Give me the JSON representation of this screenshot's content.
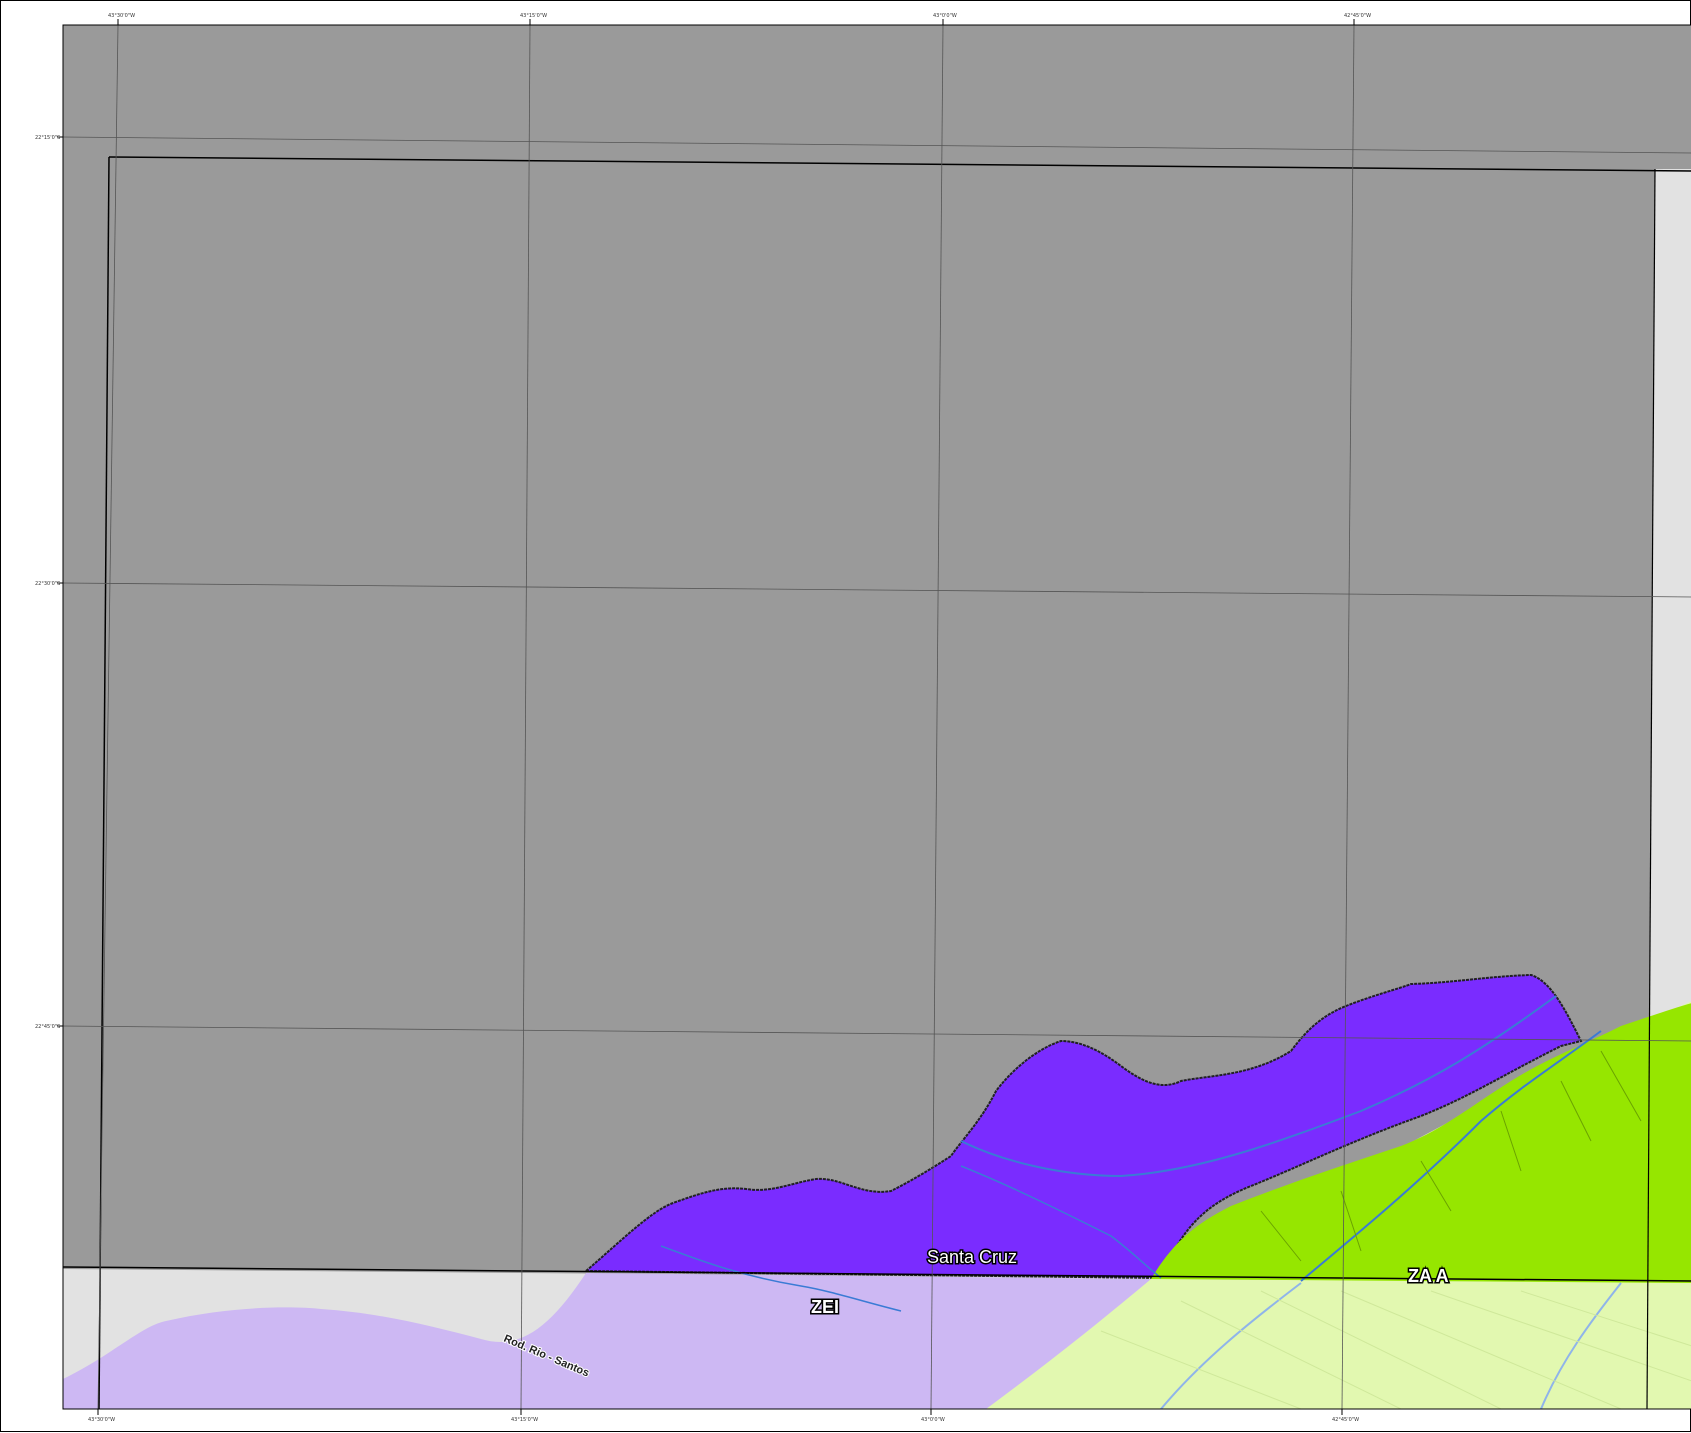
{
  "map": {
    "labels": {
      "place": "Santa Cruz",
      "zone_zei": "ZEI",
      "zone_zaa": "ZA A",
      "road": "Rod. Rio - Santos"
    },
    "colors": {
      "outside_area": "#9a9a9a",
      "light_area": "#e2e2e2",
      "zei_zone": "#cdb8f3",
      "santa_cruz_zone": "#7a2cff",
      "zaa_zone": "#96e600",
      "pale_green_area": "#e2f8b0",
      "water": "#3a7bd5",
      "grid": "#555555"
    },
    "ticks": {
      "top": [
        "43°30'0\"W",
        "43°15'0\"W",
        "43°0'0\"W",
        "42°45'0\"W"
      ],
      "bottom": [
        "43°30'0\"W",
        "43°15'0\"W",
        "43°0'0\"W",
        "42°45'0\"W"
      ],
      "left": [
        "22°15'0\"S",
        "22°30'0\"S",
        "22°45'0\"S"
      ]
    }
  }
}
